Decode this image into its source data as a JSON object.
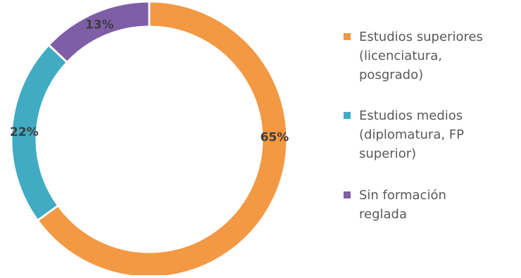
{
  "chart_data": {
    "type": "pie",
    "variant": "donut",
    "title": "",
    "legend_position": "right",
    "categories": [
      "Estudios superiores (licenciatura, posgrado)",
      "Estudios medios (diplomatura, FP superior)",
      "Sin formación reglada"
    ],
    "values": [
      65,
      22,
      13
    ],
    "data_labels": [
      "65%",
      "22%",
      "13%"
    ],
    "legend": [
      {
        "lines": [
          "Estudios superiores",
          "(licenciatura,",
          "posgrado)"
        ]
      },
      {
        "lines": [
          "Estudios medios",
          "(diplomatura, FP",
          "superior)"
        ]
      },
      {
        "lines": [
          "Sin formación",
          "reglada"
        ]
      }
    ],
    "colors": [
      "#f39843",
      "#40abc3",
      "#7f5ea8"
    ]
  }
}
